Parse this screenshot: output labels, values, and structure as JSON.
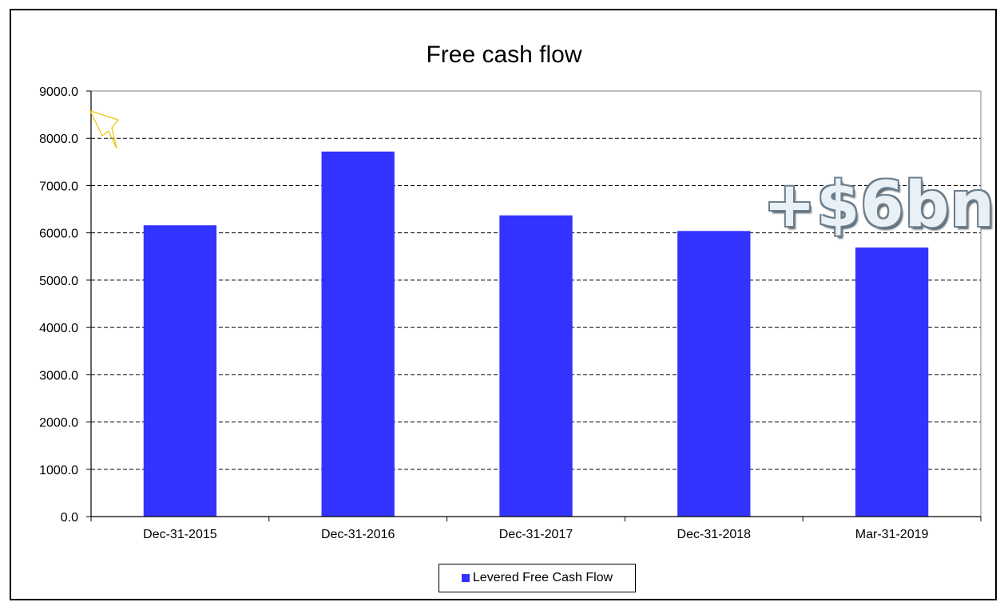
{
  "chart_data": {
    "type": "bar",
    "title": "Free cash flow",
    "xlabel": "",
    "ylabel": "",
    "categories": [
      "Dec-31-2015",
      "Dec-31-2016",
      "Dec-31-2017",
      "Dec-31-2018",
      "Mar-31-2019"
    ],
    "series": [
      {
        "name": "Levered Free Cash Flow",
        "color": "#3333ff",
        "values": [
          6160,
          7720,
          6370,
          6040,
          5690
        ]
      }
    ],
    "ylim": [
      0,
      9000
    ],
    "yticks": [
      "0.0",
      "1000.0",
      "2000.0",
      "3000.0",
      "4000.0",
      "5000.0",
      "6000.0",
      "7000.0",
      "8000.0",
      "9000.0"
    ],
    "grid": "dashed-horizontal",
    "legend_position": "bottom-center",
    "annotation": "+$6bn"
  }
}
